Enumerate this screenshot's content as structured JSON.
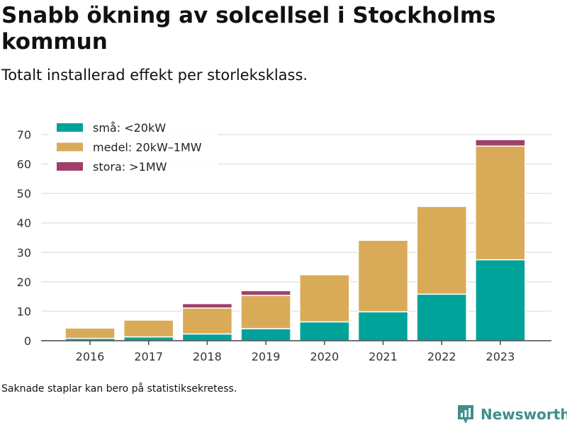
{
  "header": {
    "title": "Snabb ökning av solcellsel i Stockholms kommun",
    "subtitle": "Totalt installerad effekt per storleksklass."
  },
  "footer": {
    "note": "Saknade staplar kan bero på statistiksekretess.",
    "brand": "Newsworthy",
    "brand_icon": "newsworthy-logo-icon"
  },
  "chart_data": {
    "type": "bar",
    "stacked": true,
    "categories": [
      "2016",
      "2017",
      "2018",
      "2019",
      "2020",
      "2021",
      "2022",
      "2023"
    ],
    "series": [
      {
        "name": "små: <20kW",
        "color": "#00a39a",
        "values": [
          0.8,
          1.3,
          2.3,
          4.1,
          6.4,
          9.8,
          15.8,
          27.5
        ]
      },
      {
        "name": "medel: 20kW–1MW",
        "color": "#d9ab59",
        "values": [
          3.5,
          5.7,
          8.8,
          11.3,
          16.0,
          24.3,
          29.8,
          38.6
        ]
      },
      {
        "name": "stora: >1MW",
        "color": "#a0406a",
        "values": [
          null,
          null,
          1.5,
          1.6,
          null,
          null,
          null,
          2.2
        ]
      }
    ],
    "ylim": [
      0,
      70
    ],
    "yticks": [
      0,
      10,
      20,
      30,
      40,
      50,
      60,
      70
    ],
    "grid": true,
    "legend": "top-left"
  }
}
